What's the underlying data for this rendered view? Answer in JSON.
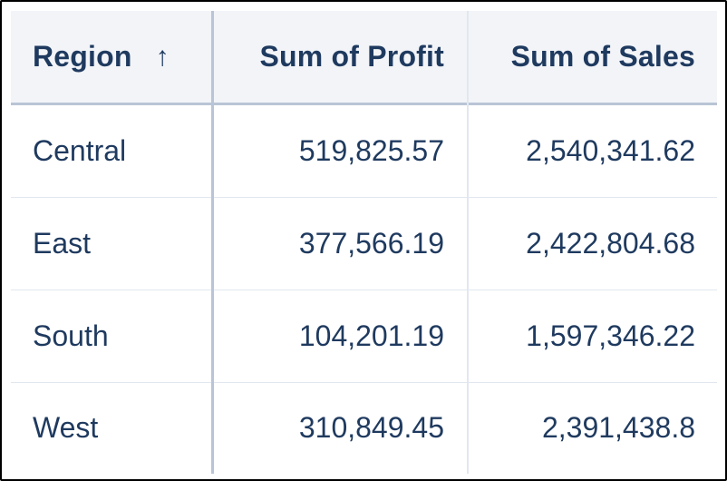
{
  "table": {
    "columns": [
      {
        "label": "Region",
        "sort_icon": "sort-ascending-arrow-icon",
        "sort_glyph": "↑"
      },
      {
        "label": "Sum of Profit"
      },
      {
        "label": "Sum of Sales"
      }
    ],
    "rows": [
      {
        "region": "Central",
        "profit": "519,825.57",
        "sales": "2,540,341.62"
      },
      {
        "region": "East",
        "profit": "377,566.19",
        "sales": "2,422,804.68"
      },
      {
        "region": "South",
        "profit": "104,201.19",
        "sales": "1,597,346.22"
      },
      {
        "region": "West",
        "profit": "310,849.45",
        "sales": "2,391,438.8"
      }
    ]
  },
  "colors": {
    "text": "#1f3a5f",
    "header_background": "#f2f4f8",
    "strong_divider": "#b9c5d6",
    "light_divider": "#e2e7ef",
    "frame_border": "#000000"
  }
}
